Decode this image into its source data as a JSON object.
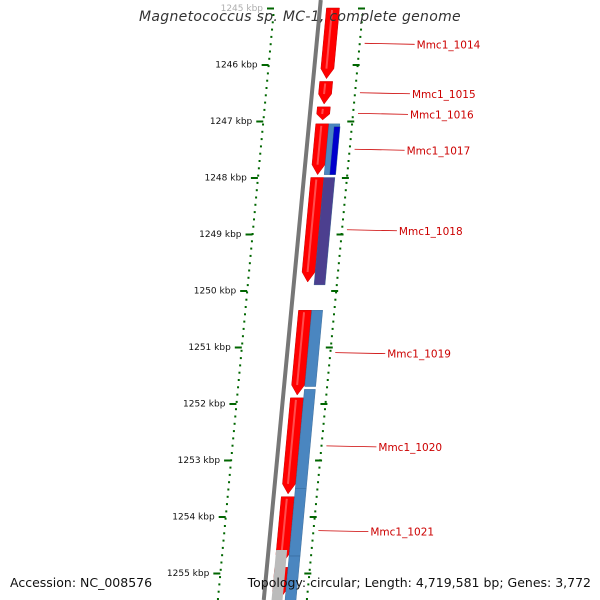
{
  "title": "Magnetococcus sp. MC-1, complete genome",
  "footer": {
    "accession": "Accession: NC_008576",
    "summary": "Topology: circular; Length: 4,719,581 bp; Genes: 3,772"
  },
  "colors": {
    "backbone": "#777777",
    "cds_forward": "#ff0000",
    "cds_blue": "#4a86c0",
    "cds_dark_blue": "#0000cc",
    "cds_purple": "#4c3f8f",
    "gc_skew": "#006600",
    "gene_label": "#cc0000",
    "label_line": "#cc0000"
  },
  "ticks": [
    {
      "label": "1245 kbp",
      "kbp": 1245
    },
    {
      "label": "1246 kbp",
      "kbp": 1246
    },
    {
      "label": "1247 kbp",
      "kbp": 1247
    },
    {
      "label": "1248 kbp",
      "kbp": 1248
    },
    {
      "label": "1249 kbp",
      "kbp": 1249
    },
    {
      "label": "1250 kbp",
      "kbp": 1250
    },
    {
      "label": "1251 kbp",
      "kbp": 1251
    },
    {
      "label": "1252 kbp",
      "kbp": 1252
    },
    {
      "label": "1253 kbp",
      "kbp": 1253
    },
    {
      "label": "1254 kbp",
      "kbp": 1254
    },
    {
      "label": "1255 kbp",
      "kbp": 1255
    }
  ],
  "genes": [
    {
      "name": "Mmc1_1014",
      "start": 1245.0,
      "end": 1246.25,
      "color": "cds_forward"
    },
    {
      "name": "Mmc1_1015",
      "start": 1246.3,
      "end": 1246.7,
      "color": "cds_forward"
    },
    {
      "name": "Mmc1_1016",
      "start": 1246.75,
      "end": 1246.98,
      "color": "cds_forward"
    },
    {
      "name": "Mmc1_1017",
      "start": 1247.05,
      "end": 1247.95,
      "color": "cds_forward"
    },
    {
      "name": "Mmc1_1018",
      "start": 1248.0,
      "end": 1249.85,
      "color": "cds_forward"
    },
    {
      "name": "Mmc1_1019",
      "start": 1250.35,
      "end": 1251.85,
      "color": "cds_forward"
    },
    {
      "name": "Mmc1_1020",
      "start": 1251.9,
      "end": 1253.6,
      "color": "cds_forward"
    },
    {
      "name": "Mmc1_1021",
      "start": 1253.65,
      "end": 1254.85,
      "color": "cds_forward"
    },
    {
      "name": "",
      "start": 1254.9,
      "end": 1255.5,
      "color": "cds_forward"
    }
  ],
  "blast_hits": [
    {
      "start": 1247.05,
      "end": 1247.95,
      "color": "cds_blue"
    },
    {
      "start": 1247.1,
      "end": 1247.95,
      "color": "cds_dark_blue"
    },
    {
      "start": 1248.0,
      "end": 1249.9,
      "color": "cds_purple"
    },
    {
      "start": 1250.35,
      "end": 1251.7,
      "color": "cds_blue"
    },
    {
      "start": 1251.75,
      "end": 1253.5,
      "color": "cds_blue"
    },
    {
      "start": 1253.5,
      "end": 1254.7,
      "color": "cds_blue"
    },
    {
      "start": 1254.7,
      "end": 1255.5,
      "color": "cds_blue"
    }
  ]
}
